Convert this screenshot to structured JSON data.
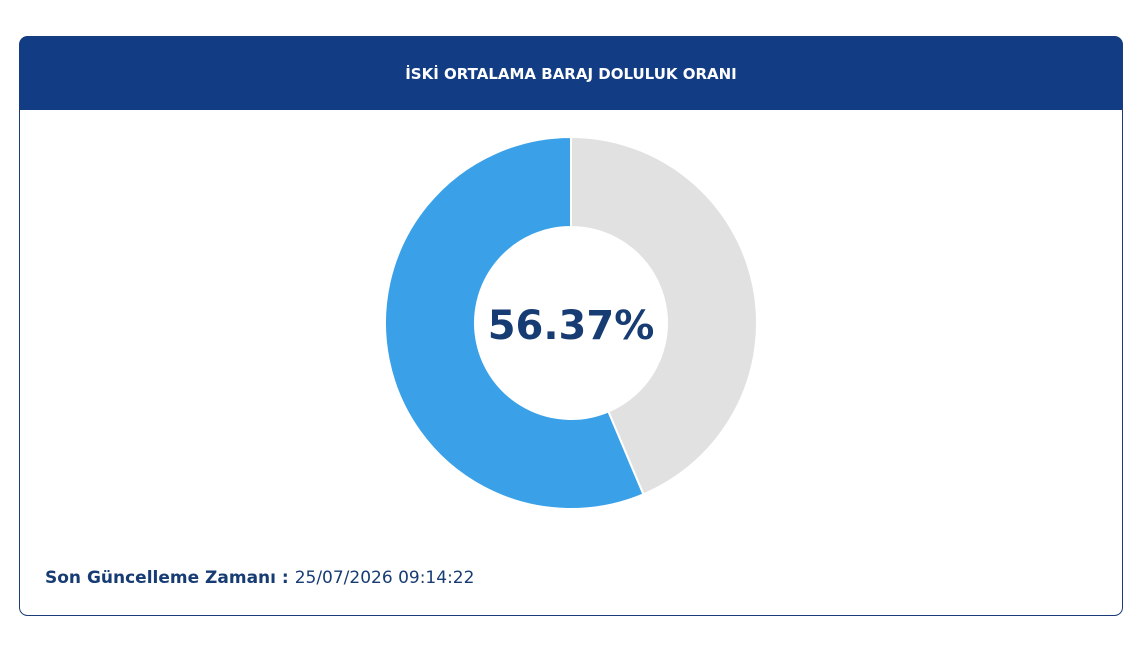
{
  "chart_data": {
    "type": "donut",
    "title": "İSKİ ORTALAMA BARAJ DOLULUK ORANI",
    "values": [
      56.37,
      43.63
    ],
    "value_labels": [
      "56.37%",
      null
    ],
    "colors": [
      "#3aa1e9",
      "#e1e1e1"
    ]
  },
  "footer": {
    "label": "Son Güncelleme Zamanı :",
    "value": "25/07/2026 09:14:22"
  }
}
